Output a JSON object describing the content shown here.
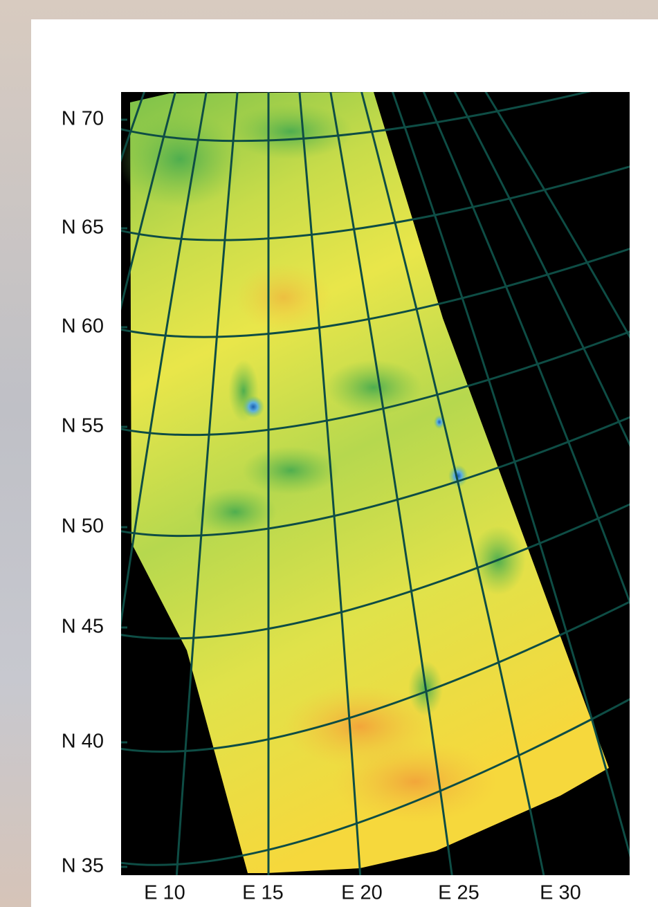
{
  "latitude_labels": [
    "N 70",
    "N 65",
    "N 60",
    "N 55",
    "N 50",
    "N 45",
    "N 40",
    "N 35"
  ],
  "longitude_labels": [
    "E 10",
    "E 15",
    "E 20",
    "E 25",
    "E 30"
  ]
}
